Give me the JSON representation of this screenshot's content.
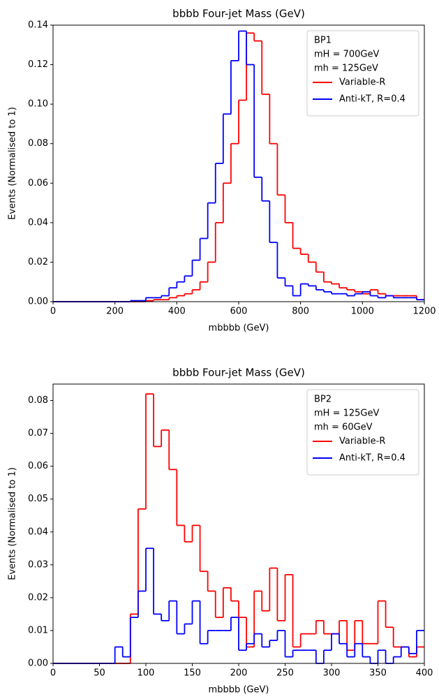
{
  "chart_data": [
    {
      "type": "histogram",
      "title": "bbbb Four-jet Mass (GeV)",
      "x_label": "mbbbb (GeV)",
      "y_label": "Events (Normalised to 1)",
      "annotations": [
        "BP1",
        "mH = 700GeV",
        "mh = 125GeV"
      ],
      "bins": [
        0,
        25,
        50,
        75,
        100,
        125,
        150,
        175,
        200,
        225,
        250,
        275,
        300,
        325,
        350,
        375,
        400,
        425,
        450,
        475,
        500,
        525,
        550,
        575,
        600,
        625,
        650,
        675,
        700,
        725,
        750,
        775,
        800,
        825,
        850,
        875,
        900,
        925,
        950,
        975,
        1000,
        1025,
        1050,
        1075,
        1100,
        1125,
        1150,
        1175,
        1200
      ],
      "series": [
        {
          "name": "Variable-R",
          "color": "#ff0000",
          "values": [
            0,
            0,
            0,
            0,
            0,
            0,
            0,
            0,
            0,
            0,
            0,
            0,
            0.0005,
            0.001,
            0.001,
            0.002,
            0.003,
            0.004,
            0.006,
            0.01,
            0.02,
            0.04,
            0.06,
            0.08,
            0.102,
            0.136,
            0.132,
            0.105,
            0.08,
            0.054,
            0.04,
            0.027,
            0.024,
            0.02,
            0.015,
            0.01,
            0.009,
            0.007,
            0.006,
            0.005,
            0.004,
            0.006,
            0.004,
            0.003,
            0.003,
            0.003,
            0.003,
            0.001
          ]
        },
        {
          "name": "Anti-kT, R=0.4",
          "color": "#0000ff",
          "values": [
            0,
            0,
            0,
            0,
            0,
            0,
            0,
            0,
            0,
            0,
            0.0005,
            0.0005,
            0.002,
            0.002,
            0.003,
            0.007,
            0.01,
            0.013,
            0.021,
            0.032,
            0.05,
            0.07,
            0.095,
            0.122,
            0.137,
            0.12,
            0.063,
            0.051,
            0.03,
            0.012,
            0.008,
            0.003,
            0.009,
            0.008,
            0.006,
            0.005,
            0.004,
            0.004,
            0.003,
            0.004,
            0.005,
            0.003,
            0.002,
            0.003,
            0.002,
            0.002,
            0.002,
            0.001
          ]
        }
      ],
      "xlim": [
        0,
        1200
      ],
      "xticks": [
        0,
        200,
        400,
        600,
        800,
        1000,
        1200
      ],
      "ylim": [
        0,
        0.14
      ],
      "yticks": [
        {
          "value": 0,
          "label": "0.00"
        },
        {
          "value": 0.02,
          "label": "0.02"
        },
        {
          "value": 0.04,
          "label": "0.04"
        },
        {
          "value": 0.06,
          "label": "0.06"
        },
        {
          "value": 0.08,
          "label": "0.08"
        },
        {
          "value": 0.1,
          "label": "0.10"
        },
        {
          "value": 0.12,
          "label": "0.12"
        },
        {
          "value": 0.14,
          "label": "0.14"
        }
      ],
      "legend": "upper right"
    },
    {
      "type": "histogram",
      "title": "bbbb Four-jet Mass (GeV)",
      "x_label": "mbbbb (GeV)",
      "y_label": "Events (Normalised to 1)",
      "annotations": [
        "BP2",
        "mH = 125GeV",
        "mh = 60GeV"
      ],
      "bins": [
        0,
        8.33,
        16.67,
        25,
        33.33,
        41.67,
        50,
        58.33,
        66.67,
        75,
        83.33,
        91.67,
        100,
        108.33,
        116.67,
        125,
        133.33,
        141.67,
        150,
        158.33,
        166.67,
        175,
        183.33,
        191.67,
        200,
        208.33,
        216.67,
        225,
        233.33,
        241.67,
        250,
        258.33,
        266.67,
        275,
        283.33,
        291.67,
        300,
        308.33,
        316.67,
        325,
        333.33,
        341.67,
        350,
        358.33,
        366.67,
        375,
        383.33,
        391.67,
        400
      ],
      "series": [
        {
          "name": "Variable-R",
          "color": "#ff0000",
          "values": [
            0,
            0,
            0,
            0,
            0,
            0,
            0,
            0,
            0,
            0,
            0.015,
            0.047,
            0.082,
            0.066,
            0.071,
            0.059,
            0.042,
            0.037,
            0.042,
            0.028,
            0.022,
            0.014,
            0.023,
            0.019,
            0.014,
            0.005,
            0.022,
            0.016,
            0.029,
            0.013,
            0.027,
            0.005,
            0.009,
            0.009,
            0.013,
            0.009,
            0.009,
            0.013,
            0.004,
            0.013,
            0.006,
            0.006,
            0.019,
            0.011,
            0.005,
            0.005,
            0.002,
            0.005
          ]
        },
        {
          "name": "Anti-kT, R=0.4",
          "color": "#0000ff",
          "values": [
            0,
            0,
            0,
            0,
            0,
            0,
            0,
            0,
            0.005,
            0.002,
            0.014,
            0.022,
            0.035,
            0.015,
            0.013,
            0.019,
            0.009,
            0.012,
            0.019,
            0.006,
            0.01,
            0.01,
            0.01,
            0.014,
            0.004,
            0.006,
            0.009,
            0.005,
            0.007,
            0.01,
            0.002,
            0.004,
            0.004,
            0.004,
            0,
            0.004,
            0.009,
            0.006,
            0.002,
            0.006,
            0.002,
            0,
            0.004,
            0,
            0.002,
            0.005,
            0.003,
            0.01
          ]
        }
      ],
      "xlim": [
        0,
        400
      ],
      "xticks": [
        0,
        50,
        100,
        150,
        200,
        250,
        300,
        350,
        400
      ],
      "ylim": [
        0,
        0.085
      ],
      "yticks": [
        {
          "value": 0,
          "label": "0.00"
        },
        {
          "value": 0.01,
          "label": "0.01"
        },
        {
          "value": 0.02,
          "label": "0.02"
        },
        {
          "value": 0.03,
          "label": "0.03"
        },
        {
          "value": 0.04,
          "label": "0.04"
        },
        {
          "value": 0.05,
          "label": "0.05"
        },
        {
          "value": 0.06,
          "label": "0.06"
        },
        {
          "value": 0.07,
          "label": "0.07"
        },
        {
          "value": 0.08,
          "label": "0.08"
        }
      ],
      "legend": "upper right"
    }
  ]
}
